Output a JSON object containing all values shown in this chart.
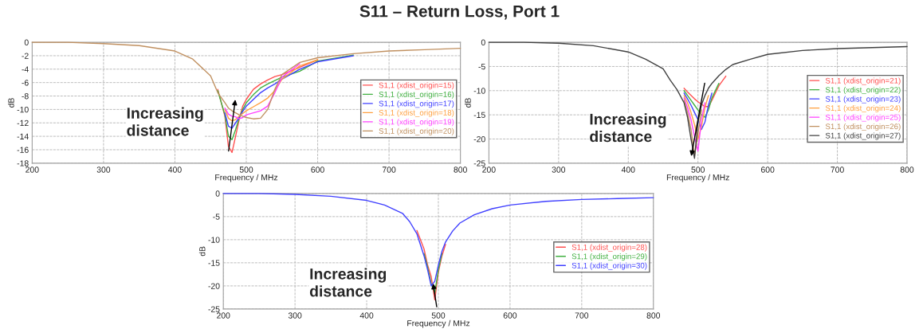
{
  "chart_data": [
    {
      "type": "line",
      "title": "S11 – Return Loss, Port 1",
      "xlabel": "Frequency / MHz",
      "ylabel": "dB",
      "xlim": [
        200,
        800
      ],
      "xticks": [
        200,
        300,
        400,
        500,
        600,
        700,
        800
      ],
      "ylim": [
        -18,
        0
      ],
      "yticks": [
        -18,
        -16,
        -14,
        -12,
        -10,
        -8,
        -6,
        -4,
        -2,
        0
      ],
      "grid": true,
      "legend": "right",
      "marker": "none",
      "line_style": "solid",
      "annotations": [
        "Increasing distance"
      ],
      "x": [
        200,
        250,
        300,
        350,
        400,
        425,
        450,
        460,
        470,
        475,
        480,
        485,
        490,
        495,
        500,
        510,
        520,
        530,
        540,
        550,
        575,
        600,
        650,
        700,
        750,
        800
      ],
      "series": [
        {
          "name": "S1,1 (xdist_origin=15)",
          "color": "#ff5050",
          "x": [
            460,
            470,
            475,
            480,
            485,
            490,
            495,
            500,
            510,
            520,
            530,
            540,
            550,
            575,
            600
          ],
          "values": [
            -7,
            -11,
            -15.5,
            -16.4,
            -14,
            -11.5,
            -9.5,
            -8.5,
            -7,
            -6.2,
            -5.6,
            -5.1,
            -4.8,
            -3.7,
            -2.6
          ]
        },
        {
          "name": "S1,1 (xdist_origin=16)",
          "color": "#40b040",
          "x": [
            460,
            470,
            475,
            480,
            485,
            490,
            495,
            500,
            510,
            520,
            530,
            540,
            550,
            575,
            600,
            650
          ],
          "values": [
            -7.2,
            -10.8,
            -14,
            -14.5,
            -13,
            -11.3,
            -10,
            -9,
            -7.8,
            -6.8,
            -6.2,
            -5.7,
            -5.2,
            -4.3,
            -2.8,
            -1.9
          ]
        },
        {
          "name": "S1,1 (xdist_origin=17)",
          "color": "#4040ff",
          "x": [
            470,
            475,
            480,
            485,
            490,
            495,
            500,
            510,
            520,
            530,
            540,
            550,
            575,
            600,
            650
          ],
          "values": [
            -10.5,
            -12.5,
            -12.8,
            -12,
            -11.2,
            -10.3,
            -9.5,
            -8.5,
            -7.5,
            -6.8,
            -6.2,
            -5.5,
            -4.0,
            -2.9,
            -2.0
          ]
        },
        {
          "name": "S1,1 (xdist_origin=18)",
          "color": "#ffa040",
          "x": [
            470,
            475,
            480,
            485,
            490,
            495,
            500,
            510,
            520,
            530,
            540,
            550,
            575,
            600
          ],
          "values": [
            -10,
            -11.3,
            -11.7,
            -11.5,
            -11,
            -10.6,
            -10.2,
            -9.6,
            -9,
            -8.3,
            -7.2,
            -5.5,
            -3.5,
            -2.6
          ]
        },
        {
          "name": "S1,1 (xdist_origin=19)",
          "color": "#ff40ff",
          "x": [
            470,
            475,
            480,
            485,
            490,
            495,
            500,
            510,
            520,
            530,
            540,
            550,
            575
          ],
          "values": [
            -9.8,
            -10.7,
            -11,
            -11.1,
            -11.4,
            -11.2,
            -10.8,
            -10.5,
            -10.2,
            -9.5,
            -7.5,
            -5.2,
            -3.2
          ]
        },
        {
          "name": "S1,1 (xdist_origin=20)",
          "color": "#c09060",
          "values": [
            0,
            0,
            -0.2,
            -0.5,
            -1.3,
            -2.5,
            -5.0,
            -7.5,
            -9,
            -9.8,
            -10.2,
            -10.5,
            -10.8,
            -11,
            -11.2,
            -11.4,
            -11.3,
            -10,
            -7,
            -4.8,
            -3.0,
            -2.3,
            -1.7,
            -1.3,
            -1.1,
            -0.9
          ]
        }
      ]
    },
    {
      "type": "line",
      "xlabel": "Frequency / MHz",
      "ylabel": "dB",
      "xlim": [
        200,
        800
      ],
      "xticks": [
        200,
        300,
        400,
        500,
        600,
        700,
        800
      ],
      "ylim": [
        -25,
        0
      ],
      "yticks": [
        -25,
        -20,
        -15,
        -10,
        -5,
        0
      ],
      "grid": true,
      "legend": "right",
      "marker": "none",
      "line_style": "solid",
      "annotations": [
        "Increasing distance"
      ],
      "x": [
        200,
        250,
        300,
        350,
        400,
        425,
        450,
        460,
        470,
        480,
        485,
        490,
        495,
        500,
        505,
        510,
        515,
        520,
        530,
        540,
        550,
        575,
        600,
        650,
        700,
        750,
        800
      ],
      "series": [
        {
          "name": "S1,1 (xdist_origin=21)",
          "color": "#ff5050",
          "x": [
            480,
            485,
            490,
            495,
            500,
            505,
            510,
            515,
            520,
            530,
            540
          ],
          "values": [
            -9.5,
            -10.3,
            -11,
            -11.7,
            -12.3,
            -12.8,
            -13.3,
            -13.3,
            -12,
            -9,
            -7
          ]
        },
        {
          "name": "S1,1 (xdist_origin=22)",
          "color": "#40b040",
          "x": [
            480,
            485,
            490,
            495,
            500,
            505,
            510,
            515,
            520,
            530
          ],
          "values": [
            -10,
            -11,
            -12,
            -13,
            -14,
            -15,
            -15.5,
            -14,
            -11.5,
            -8.5
          ]
        },
        {
          "name": "S1,1 (xdist_origin=23)",
          "color": "#4040ff",
          "x": [
            480,
            485,
            490,
            495,
            500,
            505,
            510,
            515,
            520
          ],
          "values": [
            -10.5,
            -11.7,
            -13,
            -14.5,
            -16,
            -18,
            -16.5,
            -13,
            -10.5
          ]
        },
        {
          "name": "S1,1 (xdist_origin=24)",
          "color": "#ffa040",
          "x": [
            480,
            485,
            490,
            495,
            500,
            505,
            510,
            515
          ],
          "values": [
            -11,
            -12.5,
            -14.5,
            -17,
            -20,
            -17.5,
            -13.5,
            -11
          ]
        },
        {
          "name": "S1,1 (xdist_origin=25)",
          "color": "#ff40ff",
          "x": [
            480,
            485,
            490,
            495,
            500,
            505,
            510
          ],
          "values": [
            -11.5,
            -13.5,
            -16,
            -19.5,
            -22.5,
            -16,
            -12.5
          ]
        },
        {
          "name": "S1,1 (xdist_origin=26)",
          "color": "#c09060",
          "x": [
            480,
            485,
            490,
            495,
            500,
            505
          ],
          "values": [
            -12,
            -14.5,
            -18,
            -23.5,
            -19,
            -14
          ]
        },
        {
          "name": "S1,1 (xdist_origin=27)",
          "color": "#404040",
          "values": [
            0,
            0,
            -0.2,
            -0.7,
            -2,
            -3.5,
            -5.5,
            -7.8,
            -9.8,
            -12.5,
            -15.5,
            -20,
            -24,
            -16.5,
            -13,
            -11,
            -9.5,
            -8.5,
            -6.9,
            -5.6,
            -4.6,
            -3.5,
            -2.5,
            -1.7,
            -1.3,
            -1.1,
            -0.9
          ]
        }
      ]
    },
    {
      "type": "line",
      "xlabel": "Frequency / MHz",
      "ylabel": "dB",
      "xlim": [
        200,
        800
      ],
      "xticks": [
        200,
        300,
        400,
        500,
        600,
        700,
        800
      ],
      "ylim": [
        -25,
        0
      ],
      "yticks": [
        -25,
        -20,
        -15,
        -10,
        -5,
        0
      ],
      "grid": true,
      "legend": "right",
      "marker": "none",
      "line_style": "solid",
      "annotations": [
        "Increasing distance"
      ],
      "x": [
        200,
        250,
        300,
        350,
        400,
        425,
        450,
        460,
        470,
        480,
        485,
        490,
        495,
        500,
        505,
        510,
        520,
        530,
        550,
        575,
        600,
        650,
        700,
        750,
        800
      ],
      "series": [
        {
          "name": "S1,1 (xdist_origin=28)",
          "color": "#ff5050",
          "x": [
            470,
            480,
            485,
            490,
            495,
            500,
            505,
            510
          ],
          "values": [
            -8,
            -12,
            -15.5,
            -18,
            -23,
            -17,
            -13.5,
            -11
          ]
        },
        {
          "name": "S1,1 (xdist_origin=29)",
          "color": "#40b040",
          "x": [
            480,
            485,
            490,
            495,
            500,
            505
          ],
          "values": [
            -13,
            -16,
            -19.5,
            -21.5,
            -16.5,
            -13
          ]
        },
        {
          "name": "S1,1 (xdist_origin=30)",
          "color": "#4040ff",
          "values": [
            0,
            0,
            -0.2,
            -0.6,
            -1.5,
            -2.5,
            -4.3,
            -6.1,
            -8.7,
            -13.5,
            -16.5,
            -20,
            -19,
            -15.5,
            -12.5,
            -10.5,
            -8.1,
            -6.4,
            -4.6,
            -3.3,
            -2.5,
            -1.7,
            -1.3,
            -1.1,
            -0.9
          ]
        }
      ]
    }
  ]
}
